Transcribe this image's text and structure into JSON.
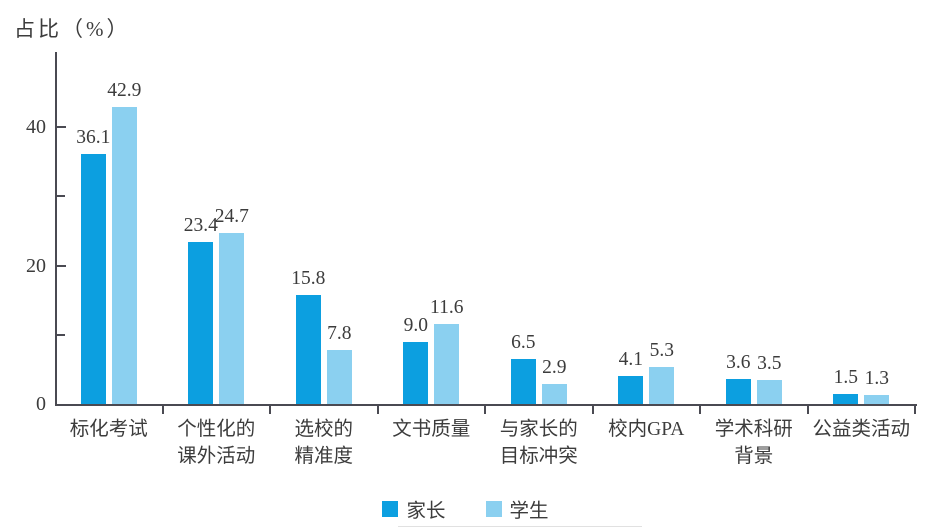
{
  "chart_data": {
    "type": "bar",
    "title": "",
    "ylabel": "占比（%）",
    "xlabel": "",
    "categories": [
      "标化考试",
      "个性化的\n课外活动",
      "选校的\n精准度",
      "文书质量",
      "与家长的\n目标冲突",
      "校内GPA",
      "学术科研\n背景",
      "公益类活动"
    ],
    "series": [
      {
        "name": "家长",
        "color": "#0c9fe0",
        "values": [
          36.1,
          23.4,
          15.8,
          9.0,
          6.5,
          4.1,
          3.6,
          1.5
        ]
      },
      {
        "name": "学生",
        "color": "#8bd0f0",
        "values": [
          42.9,
          24.7,
          7.8,
          11.6,
          2.9,
          5.3,
          3.5,
          1.3
        ]
      }
    ],
    "value_label_decimals": 1,
    "ylim": [
      0,
      51
    ],
    "yticks_major": [
      0,
      20,
      40
    ],
    "ytick_labels": [
      "0",
      "20",
      "40"
    ],
    "yticks_minor": [
      10,
      30
    ],
    "grid": false,
    "legend_position": "bottom-center",
    "axis_color": "#4a4a52",
    "text_color": "#3c3c3c"
  }
}
